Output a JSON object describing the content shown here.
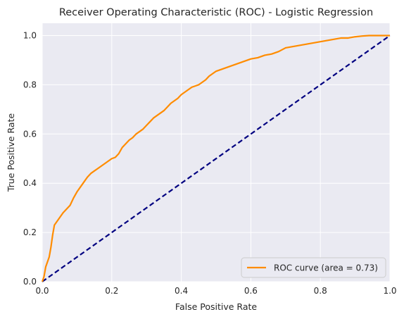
{
  "chart_data": {
    "type": "line",
    "title": "Receiver Operating Characteristic (ROC) - Logistic Regression",
    "xlabel": "False Positive Rate",
    "ylabel": "True Positive Rate",
    "xlim": [
      0.0,
      1.0
    ],
    "ylim": [
      0.0,
      1.05
    ],
    "xticks": [
      "0.0",
      "0.2",
      "0.4",
      "0.6",
      "0.8",
      "1.0"
    ],
    "yticks": [
      "0.0",
      "0.2",
      "0.4",
      "0.6",
      "0.8",
      "1.0"
    ],
    "grid": true,
    "legend_position": "lower-right",
    "series": [
      {
        "name": "ROC curve (area = 0.73)",
        "color": "#ff8c00",
        "x": [
          0.0,
          0.005,
          0.01,
          0.015,
          0.02,
          0.025,
          0.03,
          0.035,
          0.04,
          0.05,
          0.06,
          0.07,
          0.08,
          0.09,
          0.1,
          0.11,
          0.12,
          0.13,
          0.14,
          0.15,
          0.16,
          0.17,
          0.18,
          0.19,
          0.2,
          0.21,
          0.22,
          0.23,
          0.24,
          0.25,
          0.26,
          0.27,
          0.28,
          0.29,
          0.3,
          0.31,
          0.32,
          0.33,
          0.34,
          0.35,
          0.36,
          0.37,
          0.38,
          0.39,
          0.4,
          0.41,
          0.42,
          0.43,
          0.44,
          0.45,
          0.46,
          0.47,
          0.48,
          0.49,
          0.5,
          0.51,
          0.52,
          0.53,
          0.54,
          0.55,
          0.56,
          0.57,
          0.58,
          0.59,
          0.6,
          0.62,
          0.64,
          0.66,
          0.68,
          0.7,
          0.72,
          0.74,
          0.76,
          0.78,
          0.8,
          0.82,
          0.84,
          0.86,
          0.88,
          0.9,
          0.92,
          0.94,
          0.96,
          0.98,
          1.0
        ],
        "y": [
          0.0,
          0.02,
          0.06,
          0.08,
          0.1,
          0.14,
          0.19,
          0.23,
          0.24,
          0.26,
          0.28,
          0.295,
          0.31,
          0.34,
          0.365,
          0.385,
          0.405,
          0.425,
          0.44,
          0.45,
          0.46,
          0.47,
          0.48,
          0.49,
          0.5,
          0.505,
          0.52,
          0.545,
          0.56,
          0.575,
          0.585,
          0.6,
          0.61,
          0.62,
          0.635,
          0.65,
          0.665,
          0.675,
          0.685,
          0.695,
          0.71,
          0.725,
          0.735,
          0.745,
          0.76,
          0.77,
          0.78,
          0.79,
          0.795,
          0.8,
          0.81,
          0.82,
          0.835,
          0.845,
          0.855,
          0.86,
          0.865,
          0.87,
          0.875,
          0.88,
          0.885,
          0.89,
          0.895,
          0.9,
          0.905,
          0.91,
          0.92,
          0.925,
          0.935,
          0.95,
          0.955,
          0.96,
          0.965,
          0.97,
          0.975,
          0.98,
          0.985,
          0.99,
          0.99,
          0.995,
          0.998,
          1.0,
          1.0,
          1.0,
          1.0
        ]
      },
      {
        "name": "",
        "color": "#000080",
        "dashed": true,
        "x": [
          0.0,
          1.0
        ],
        "y": [
          0.0,
          1.0
        ]
      }
    ]
  }
}
